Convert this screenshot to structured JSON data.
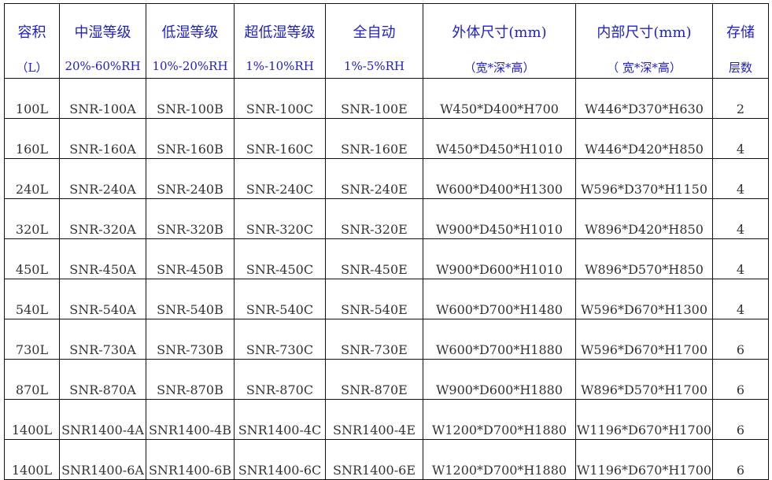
{
  "header": [
    {
      "line1": "容积",
      "line2": "（L）"
    },
    {
      "line1": "中湿等级",
      "line2": "20%-60%RH"
    },
    {
      "line1": "低湿等级",
      "line2": "10%-20%RH"
    },
    {
      "line1": "超低湿等级",
      "line2": "1%-10%RH"
    },
    {
      "line1": "全自动",
      "line2": "1%-5%RH"
    },
    {
      "line1": "外体尺寸(mm)",
      "line2": "（宽*深*高）"
    },
    {
      "line1": "内部尺寸(mm)",
      "line2": "（ 宽*深*高）"
    },
    {
      "line1": "存储",
      "line2": "层数"
    }
  ],
  "rows": [
    [
      "100L",
      "SNR-100A",
      "SNR-100B",
      "SNR-100C",
      "SNR-100E",
      "W450*D400*H700",
      "W446*D370*H630",
      "2"
    ],
    [
      "160L",
      "SNR-160A",
      "SNR-160B",
      "SNR-160C",
      "SNR-160E",
      "W450*D450*H1010",
      "W446*D420*H850",
      "4"
    ],
    [
      "240L",
      "SNR-240A",
      "SNR-240B",
      "SNR-240C",
      "SNR-240E",
      "W600*D400*H1300",
      "W596*D370*H1150",
      "4"
    ],
    [
      "320L",
      "SNR-320A",
      "SNR-320B",
      "SNR-320C",
      "SNR-320E",
      "W900*D450*H1010",
      "W896*D420*H850",
      "4"
    ],
    [
      "450L",
      "SNR-450A",
      "SNR-450B",
      "SNR-450C",
      "SNR-450E",
      "W900*D600*H1010",
      "W896*D570*H850",
      "4"
    ],
    [
      "540L",
      "SNR-540A",
      "SNR-540B",
      "SNR-540C",
      "SNR-540E",
      "W600*D700*H1480",
      "W596*D670*H1300",
      "4"
    ],
    [
      "730L",
      "SNR-730A",
      "SNR-730B",
      "SNR-730C",
      "SNR-730E",
      "W600*D700*H1880",
      "W596*D670*H1700",
      "6"
    ],
    [
      "870L",
      "SNR-870A",
      "SNR-870B",
      "SNR-870C",
      "SNR-870E",
      "W900*D600*H1880",
      "W896*D570*H1700",
      "6"
    ],
    [
      "1400L",
      "SNR1400-4A",
      "SNR1400-4B",
      "SNR1400-4C",
      "SNR1400-4E",
      "W1200*D700*H1880",
      "W1196*D670*H1700",
      "6"
    ],
    [
      "1400L",
      "SNR1400-6A",
      "SNR1400-6B",
      "SNR1400-6C",
      "SNR1400-6E",
      "W1200*D700*H1880",
      "W1196*D670*H1700",
      "6"
    ]
  ]
}
